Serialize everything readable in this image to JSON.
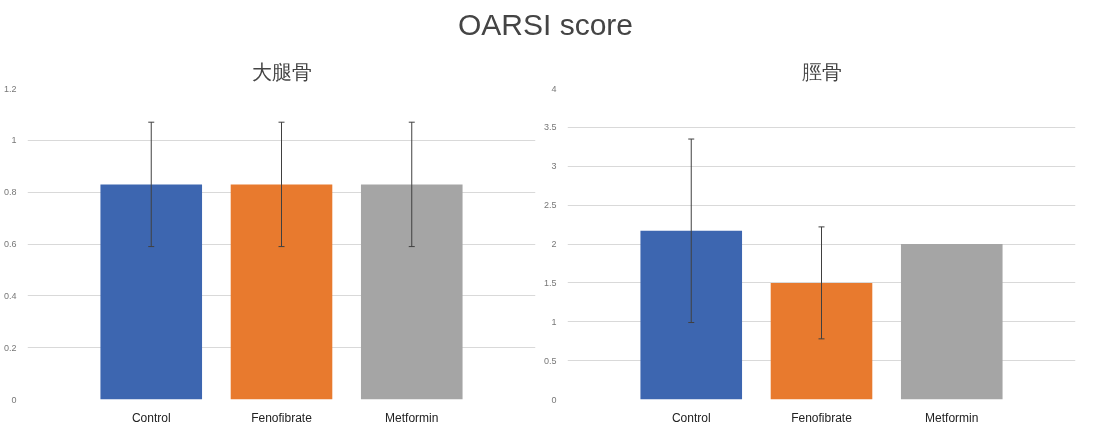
{
  "chart_data": [
    {
      "type": "other",
      "title": "OARSI score"
    },
    {
      "type": "bar",
      "title": "大腿骨",
      "categories": [
        "Control",
        "Fenofibrate",
        "Metformin"
      ],
      "values": [
        0.83,
        0.83,
        0.83
      ],
      "colors": [
        "#3d66b0",
        "#e87a2e",
        "#a5a5a5"
      ],
      "errors": [
        0.24,
        0.24,
        0.24
      ],
      "ylim": [
        0,
        1.2
      ],
      "yticks": [
        0,
        0.2,
        0.4,
        0.6,
        0.8,
        1,
        1.2
      ],
      "grid": "y"
    },
    {
      "type": "bar",
      "title": "脛骨",
      "categories": [
        "Control",
        "Fenofibrate",
        "Metformin"
      ],
      "values": [
        2.17,
        1.5,
        2.0
      ],
      "colors": [
        "#3d66b0",
        "#e87a2e",
        "#a5a5a5"
      ],
      "errors": [
        1.18,
        0.72,
        null
      ],
      "ylim": [
        0,
        4
      ],
      "yticks": [
        0,
        0.5,
        1,
        1.5,
        2,
        2.5,
        3,
        3.5,
        4
      ],
      "grid": "y"
    }
  ]
}
